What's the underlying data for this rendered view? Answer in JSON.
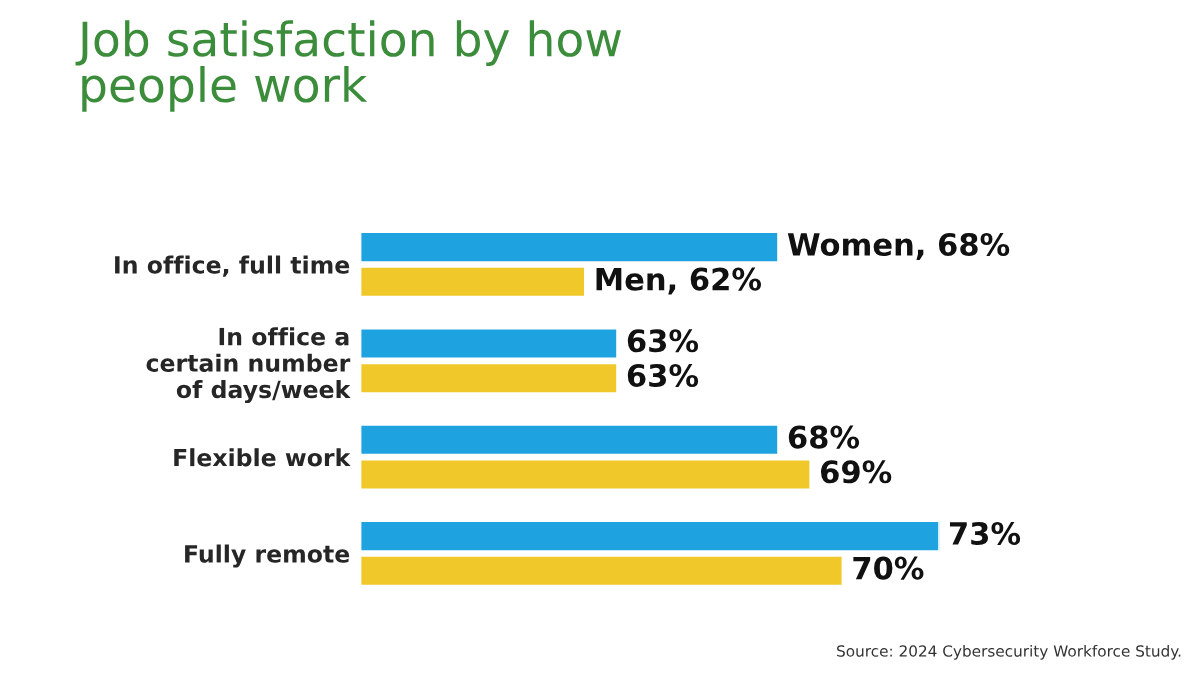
{
  "chart_data": {
    "type": "bar",
    "orientation": "horizontal",
    "title": "Job satisfaction by how\npeople work",
    "categories": [
      "In office, full time",
      "In office a\ncertain number\nof days/week",
      "Flexible work",
      "Fully remote"
    ],
    "series": [
      {
        "name": "Women",
        "color": "#1ea3e0",
        "values": [
          68,
          63,
          68,
          73
        ],
        "value_labels": [
          ", 68%",
          "63%",
          "68%",
          "73%"
        ]
      },
      {
        "name": "Men",
        "color": "#f0c82a",
        "values": [
          62,
          63,
          69,
          70
        ],
        "value_labels": [
          ", 62%",
          "63%",
          "69%",
          "70%"
        ]
      }
    ],
    "xlim": [
      55,
      73
    ],
    "tick_labels": "y",
    "grid": false,
    "legend": false,
    "annotations": [
      "Source: 2024 Cybersecurity Workforce Study."
    ]
  }
}
